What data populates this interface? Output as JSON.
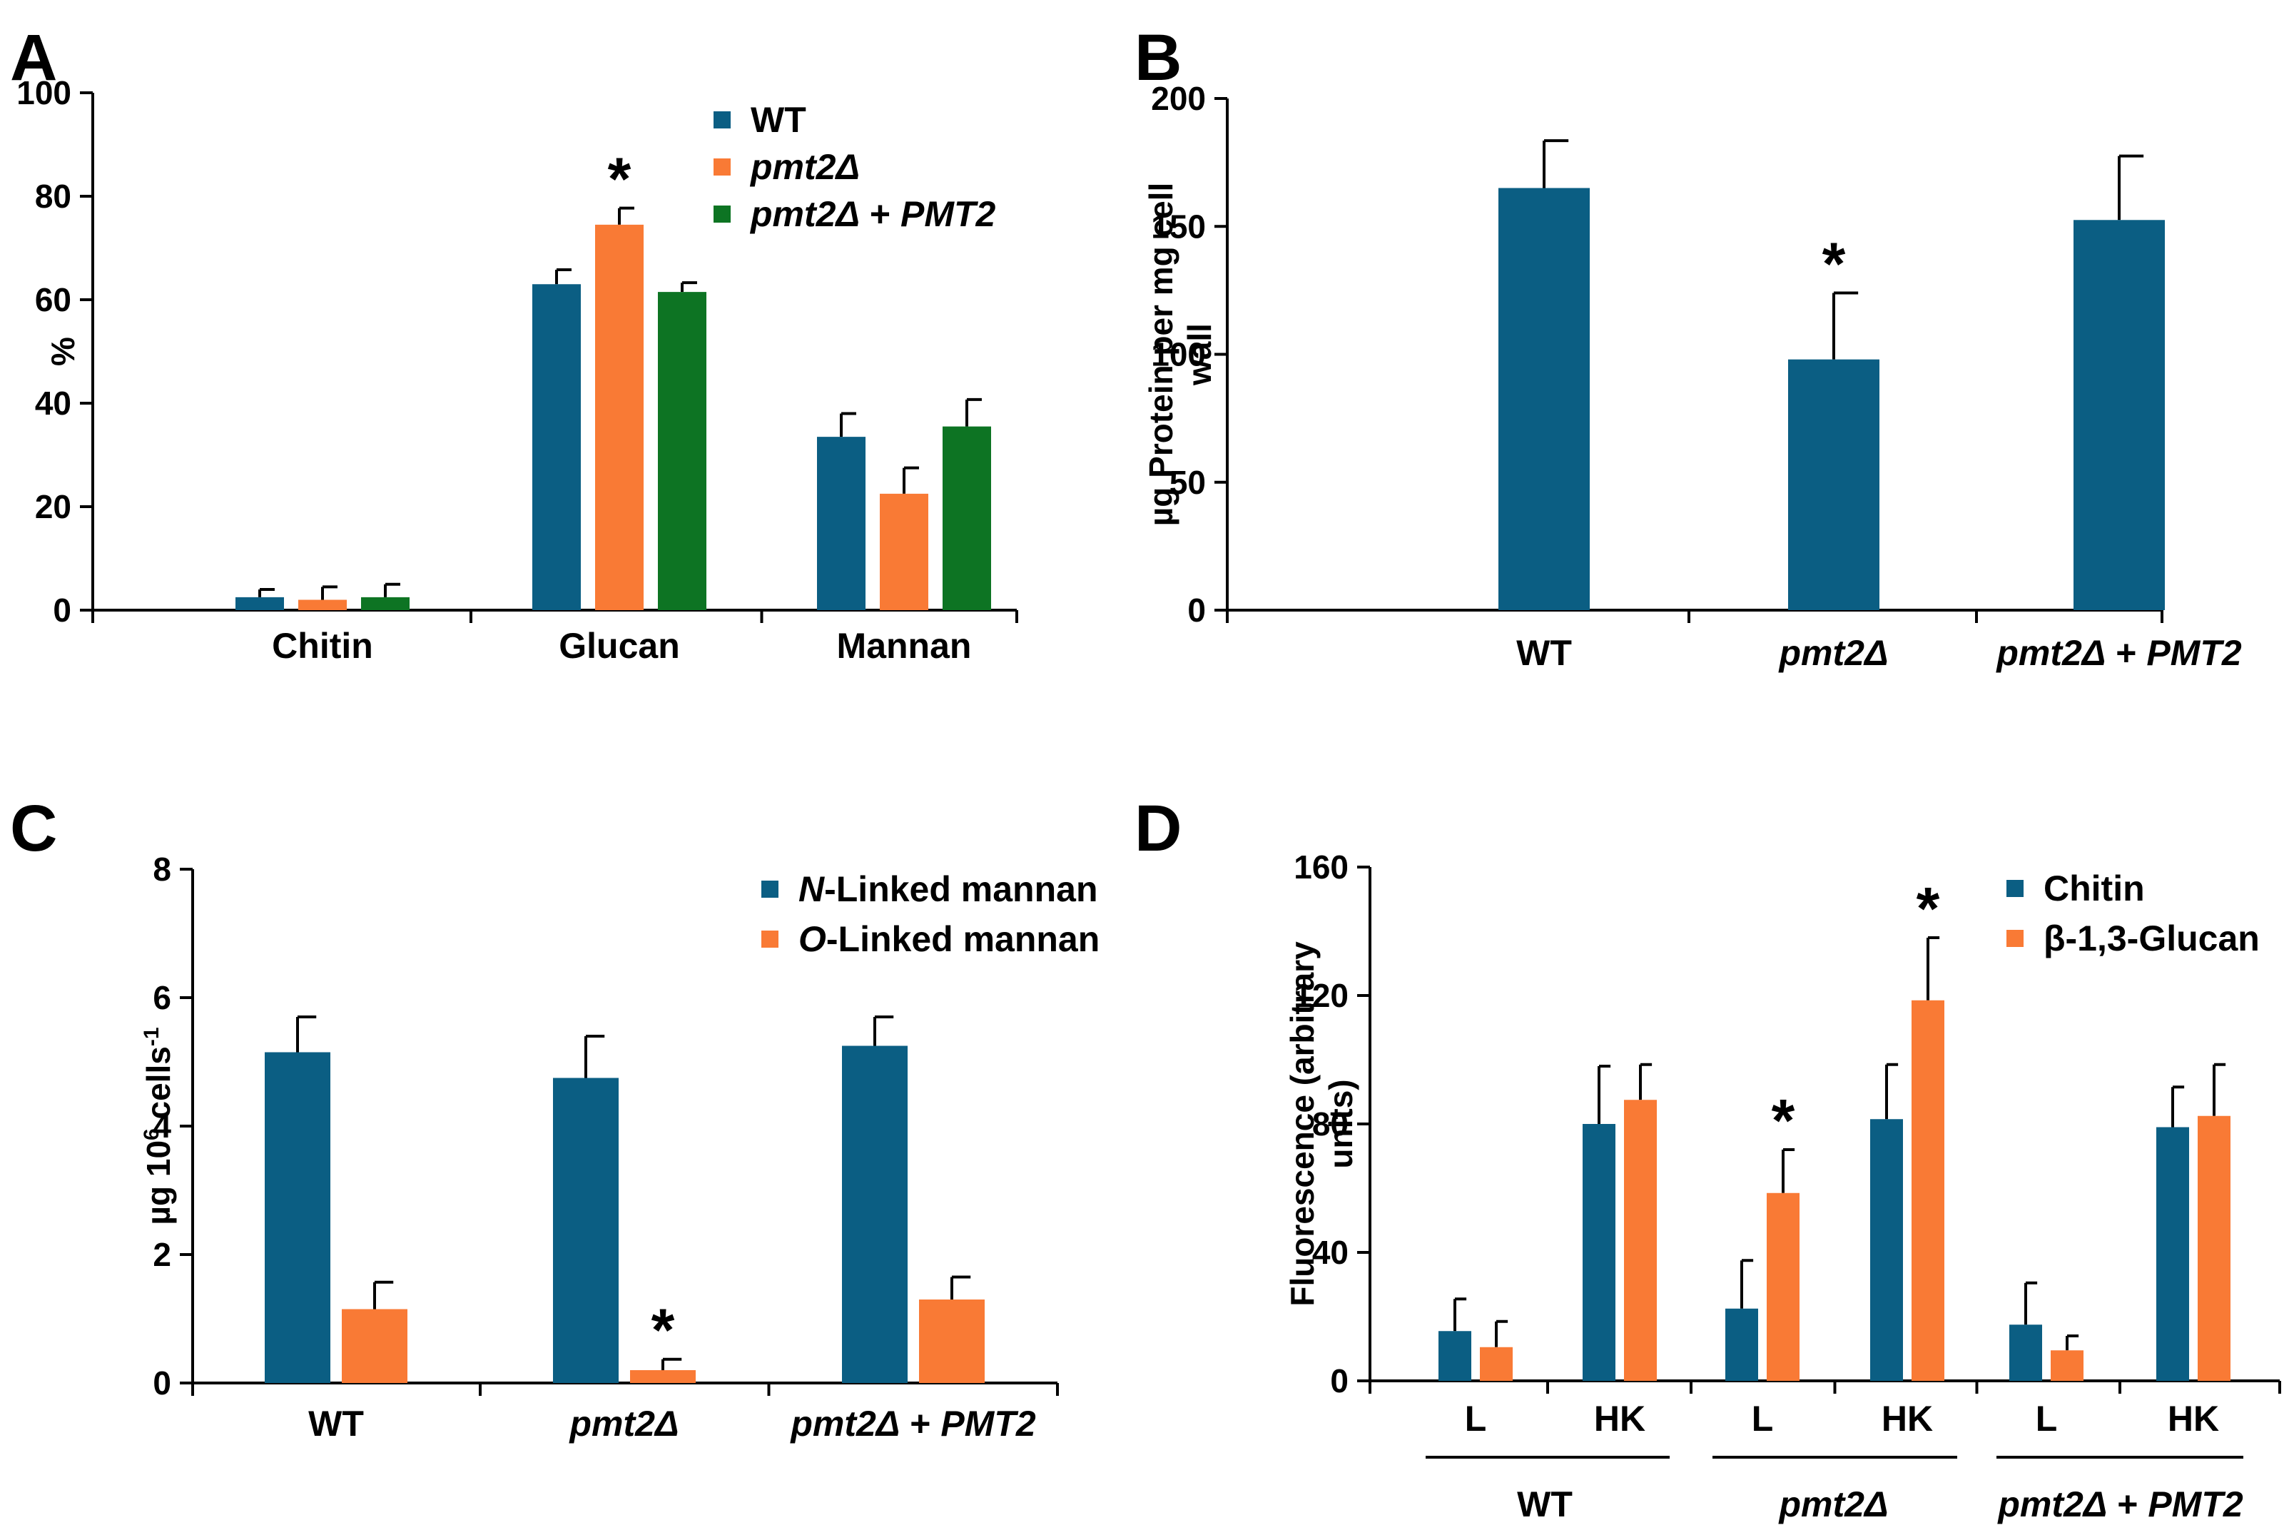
{
  "colors": {
    "blue": "#0B5E83",
    "orange": "#F97A35",
    "green": "#0D7423",
    "axis": "#000000"
  },
  "chart_data": [
    {
      "panel": "A",
      "type": "bar",
      "ylabel": "%",
      "ylim": [
        0,
        100
      ],
      "yticks": [
        0,
        20,
        40,
        60,
        80,
        100
      ],
      "categories": [
        "Chitin",
        "Glucan",
        "Mannan"
      ],
      "series": [
        {
          "name": "WT",
          "color": "blue",
          "values": [
            2.5,
            63,
            33.5
          ],
          "errors": [
            1.5,
            2.8,
            4.5
          ]
        },
        {
          "name_parts": [
            {
              "t": "pmt2Δ",
              "i": true
            }
          ],
          "color": "orange",
          "values": [
            2,
            74.5,
            22.5
          ],
          "errors": [
            2.5,
            3.2,
            5
          ]
        },
        {
          "name_parts": [
            {
              "t": "pmt2Δ",
              "i": true
            },
            {
              "t": " + ",
              "i": false
            },
            {
              "t": "PMT2",
              "i": true
            }
          ],
          "color": "green",
          "values": [
            2.5,
            61.5,
            35.5
          ],
          "errors": [
            2.5,
            1.8,
            5.2
          ]
        }
      ],
      "significance": [
        {
          "series": 1,
          "category": 1,
          "label": "*"
        }
      ]
    },
    {
      "panel": "B",
      "type": "bar",
      "ylabel_lines": [
        "µg Protein per mg cell",
        "wall"
      ],
      "ylim": [
        0,
        200
      ],
      "yticks": [
        0,
        50,
        100,
        150,
        200
      ],
      "categories": [
        [
          {
            "t": "WT",
            "i": false
          }
        ],
        [
          {
            "t": "pmt2Δ",
            "i": true
          }
        ],
        [
          {
            "t": "pmt2Δ",
            "i": true
          },
          {
            "t": " + ",
            "i": false
          },
          {
            "t": "PMT2",
            "i": true
          }
        ]
      ],
      "series": [
        {
          "name": "Protein",
          "color": "blue",
          "values": [
            165,
            98,
            152.5
          ],
          "errors": [
            18.5,
            26,
            25
          ]
        }
      ],
      "significance": [
        {
          "series": 0,
          "category": 1,
          "label": "*"
        }
      ]
    },
    {
      "panel": "C",
      "type": "bar",
      "ylabel": "µg 10",
      "ylabel_sup": "6",
      "ylabel_tail": " cells",
      "ylabel_sup2": "-1",
      "ylim": [
        0,
        8
      ],
      "yticks": [
        0,
        2,
        4,
        6,
        8
      ],
      "categories": [
        [
          {
            "t": "WT",
            "i": false
          }
        ],
        [
          {
            "t": "pmt2Δ",
            "i": true
          }
        ],
        [
          {
            "t": "pmt2Δ",
            "i": true
          },
          {
            "t": " + ",
            "i": false
          },
          {
            "t": "PMT2",
            "i": true
          }
        ]
      ],
      "series": [
        {
          "name_parts": [
            {
              "t": "N",
              "i": true
            },
            {
              "t": "-Linked mannan",
              "i": false
            }
          ],
          "color": "blue",
          "values": [
            5.15,
            4.75,
            5.25
          ],
          "errors": [
            0.55,
            0.65,
            0.45
          ]
        },
        {
          "name_parts": [
            {
              "t": "O",
              "i": true
            },
            {
              "t": "-Linked mannan",
              "i": false
            }
          ],
          "color": "orange",
          "values": [
            1.15,
            0.2,
            1.3
          ],
          "errors": [
            0.42,
            0.17,
            0.35
          ]
        }
      ],
      "significance": [
        {
          "series": 1,
          "category": 1,
          "label": "*"
        }
      ]
    },
    {
      "panel": "D",
      "type": "bar",
      "ylabel_lines": [
        "Fluorescence (arbitrary",
        "units)"
      ],
      "ylim": [
        0,
        160
      ],
      "yticks": [
        0,
        40,
        80,
        120,
        160
      ],
      "categories": [
        "L",
        "HK",
        "L",
        "HK",
        "L",
        "HK"
      ],
      "groups": [
        [
          {
            "t": "WT",
            "i": false
          }
        ],
        [
          {
            "t": "pmt2Δ",
            "i": true
          }
        ],
        [
          {
            "t": "pmt2Δ",
            "i": true
          },
          {
            "t": " + ",
            "i": false
          },
          {
            "t": "PMT2",
            "i": true
          }
        ]
      ],
      "series": [
        {
          "name": "Chitin",
          "color": "blue",
          "values": [
            15.5,
            80,
            22.5,
            81.5,
            17.5,
            79
          ],
          "errors": [
            10,
            18,
            15,
            17,
            13,
            12.5
          ]
        },
        {
          "name": "β-1,3-Glucan",
          "color": "orange",
          "values": [
            10.5,
            87.5,
            58.5,
            118.5,
            9.5,
            82.5
          ],
          "errors": [
            8,
            11,
            13.5,
            19.5,
            4.5,
            16
          ]
        }
      ],
      "significance": [
        {
          "series": 1,
          "category": 2,
          "label": "*"
        },
        {
          "series": 1,
          "category": 3,
          "label": "*"
        }
      ]
    }
  ],
  "panel_labels": [
    "A",
    "B",
    "C",
    "D"
  ]
}
